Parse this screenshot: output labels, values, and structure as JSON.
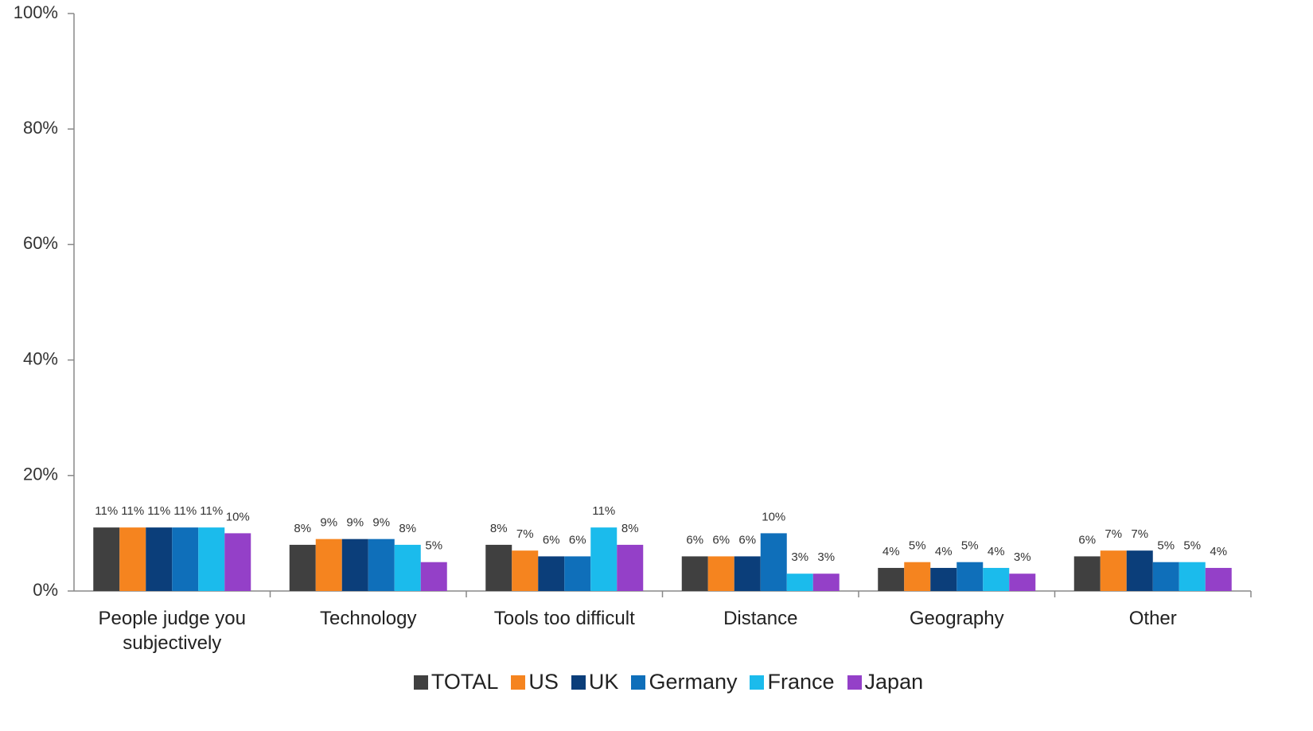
{
  "chart_data": {
    "type": "bar",
    "categories": [
      "People judge you subjectively",
      "Technology",
      "Tools too difficult",
      "Distance",
      "Geography",
      "Other"
    ],
    "series": [
      {
        "name": "TOTAL",
        "color": "#404040",
        "values": [
          11,
          8,
          8,
          6,
          4,
          6
        ],
        "value_labels": [
          "11%",
          "8%",
          "8%",
          "6%",
          "4%",
          "6%"
        ]
      },
      {
        "name": "US",
        "color": "#f5841f",
        "values": [
          11,
          9,
          7,
          6,
          5,
          7
        ],
        "value_labels": [
          "11%",
          "9%",
          "7%",
          "6%",
          "5%",
          "7%"
        ]
      },
      {
        "name": "UK",
        "color": "#0b3e7a",
        "values": [
          11,
          9,
          6,
          6,
          4,
          7
        ],
        "value_labels": [
          "11%",
          "9%",
          "6%",
          "6%",
          "4%",
          "7%"
        ]
      },
      {
        "name": "Germany",
        "color": "#0f6fba",
        "values": [
          11,
          9,
          6,
          10,
          5,
          5
        ],
        "value_labels": [
          "11%",
          "9%",
          "6%",
          "10%",
          "5%",
          "5%"
        ]
      },
      {
        "name": "France",
        "color": "#1bbbec",
        "values": [
          11,
          8,
          11,
          3,
          4,
          5
        ],
        "value_labels": [
          "11%",
          "8%",
          "11%",
          "3%",
          "4%",
          "5%"
        ]
      },
      {
        "name": "Japan",
        "color": "#9440c8",
        "values": [
          10,
          5,
          8,
          3,
          3,
          4
        ],
        "value_labels": [
          "10%",
          "5%",
          "8%",
          "3%",
          "3%",
          "4%"
        ]
      }
    ],
    "ylim": [
      0,
      100
    ],
    "yticks": [
      {
        "value": 0,
        "label": "0%"
      },
      {
        "value": 20,
        "label": "20%"
      },
      {
        "value": 40,
        "label": "40%"
      },
      {
        "value": 60,
        "label": "60%"
      },
      {
        "value": 80,
        "label": "80%"
      },
      {
        "value": 100,
        "label": "100%"
      }
    ],
    "legend": "bottom"
  }
}
